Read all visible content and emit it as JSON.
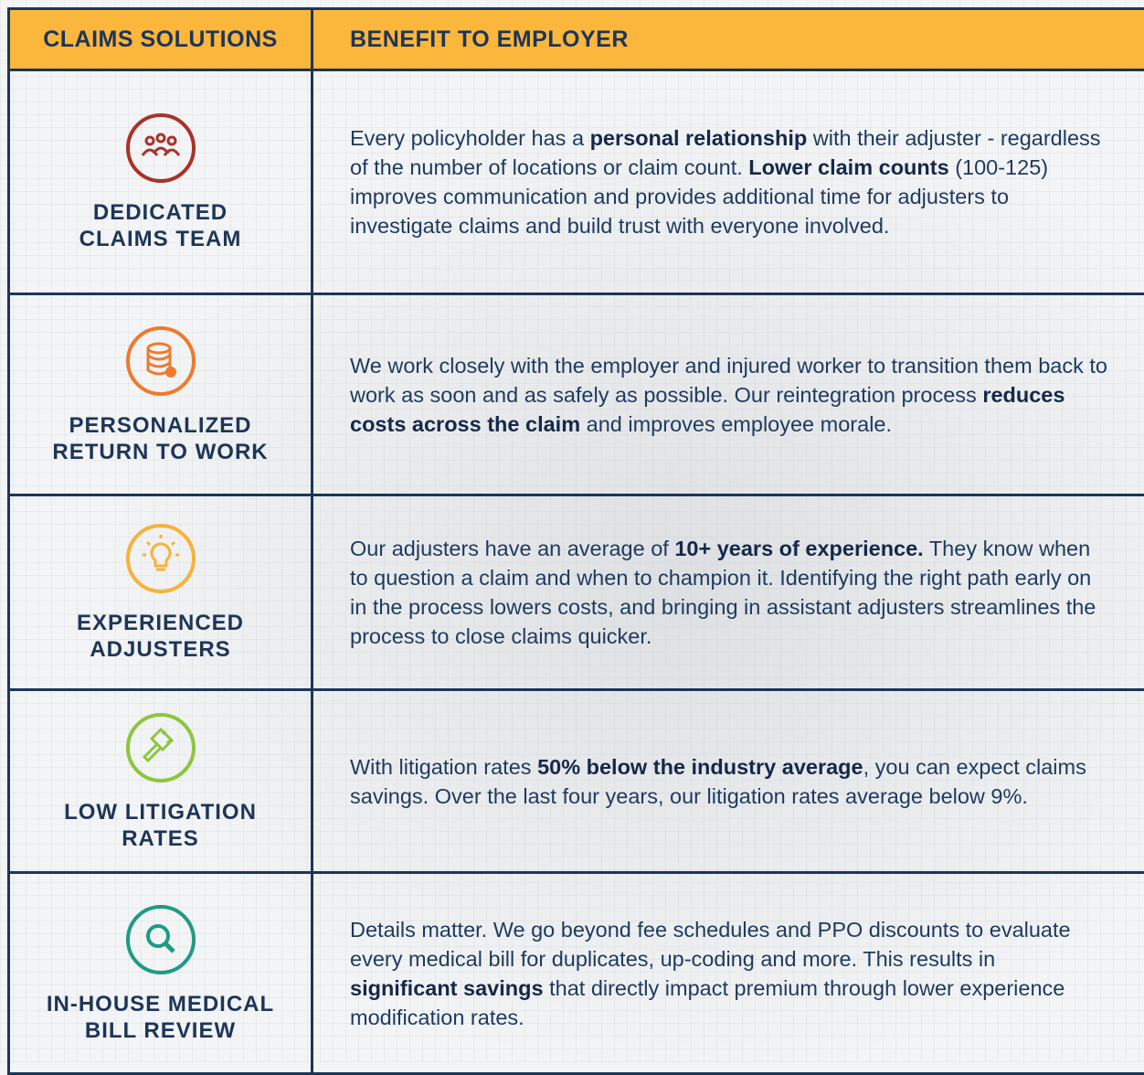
{
  "header": {
    "col1": "CLAIMS SOLUTIONS",
    "col2": "BENEFIT TO EMPLOYER"
  },
  "rows": [
    {
      "label": [
        "DEDICATED",
        "CLAIMS TEAM"
      ],
      "text": [
        {
          "t": "Every policyholder has a "
        },
        {
          "t": "personal relationship",
          "b": true
        },
        {
          "t": " with their adjuster - regardless of the number of locations or claim count. "
        },
        {
          "t": "Lower claim counts",
          "b": true
        },
        {
          "t": " (100-125) improves communication and provides additional time for adjusters to investigate claims and build trust with everyone involved."
        }
      ]
    },
    {
      "label": [
        "PERSONALIZED",
        "RETURN TO WORK"
      ],
      "text": [
        {
          "t": "We work closely with the employer and injured worker to transition them back to work as soon and as safely as possible. Our reintegration process "
        },
        {
          "t": "reduces costs across the claim",
          "b": true
        },
        {
          "t": " and improves employee morale."
        }
      ]
    },
    {
      "label": [
        "EXPERIENCED",
        "ADJUSTERS"
      ],
      "text": [
        {
          "t": "Our adjusters have an average of "
        },
        {
          "t": "10+ years of experience.",
          "b": true
        },
        {
          "t": " They know when to question a claim and when to champion it. Identifying the right path early on in the process lowers costs, and bringing in assistant adjusters streamlines the process to close claims quicker."
        }
      ]
    },
    {
      "label": [
        "LOW LITIGATION",
        "RATES"
      ],
      "text": [
        {
          "t": "With litigation rates "
        },
        {
          "t": "50% below the industry average",
          "b": true
        },
        {
          "t": ", you can expect claims savings. Over the last four years, our litigation rates average below 9%."
        }
      ]
    },
    {
      "label": [
        "IN-HOUSE MEDICAL",
        "BILL REVIEW"
      ],
      "text": [
        {
          "t": "Details matter. We go beyond fee schedules and PPO discounts to evaluate every medical bill for duplicates, up-coding and more. This results in "
        },
        {
          "t": "significant savings",
          "b": true
        },
        {
          "t": " that directly impact premium through lower experience modification rates."
        }
      ]
    }
  ]
}
